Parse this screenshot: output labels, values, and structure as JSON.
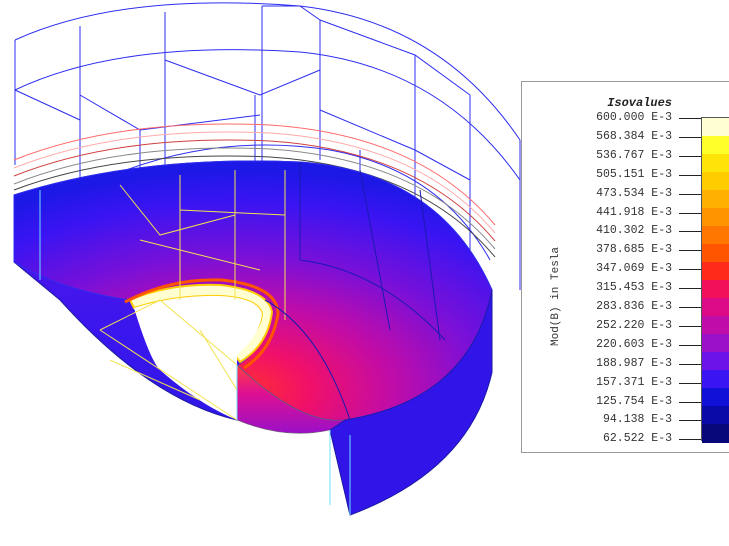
{
  "legend": {
    "title": "Isovalues",
    "quantity_label": "Mod(B) in Tesla",
    "levels": [
      {
        "label": "600.000 E-3",
        "color": "#ffffd2"
      },
      {
        "label": "568.384 E-3",
        "color": "#ffff2a"
      },
      {
        "label": "536.767 E-3",
        "color": "#ffe40a"
      },
      {
        "label": "505.151 E-3",
        "color": "#ffcc00"
      },
      {
        "label": "473.534 E-3",
        "color": "#ffb000"
      },
      {
        "label": "441.918 E-3",
        "color": "#ff9400"
      },
      {
        "label": "410.302 E-3",
        "color": "#ff7600"
      },
      {
        "label": "378.685 E-3",
        "color": "#ff5400"
      },
      {
        "label": "347.069 E-3",
        "color": "#ff2a1a"
      },
      {
        "label": "315.453 E-3",
        "color": "#f2105a"
      },
      {
        "label": "283.836 E-3",
        "color": "#dc0a86"
      },
      {
        "label": "252.220 E-3",
        "color": "#c00ca8"
      },
      {
        "label": "220.603 E-3",
        "color": "#9a10c8"
      },
      {
        "label": "188.987 E-3",
        "color": "#6a12e8"
      },
      {
        "label": "157.371 E-3",
        "color": "#3a14f2"
      },
      {
        "label": "125.754 E-3",
        "color": "#1010d8"
      },
      {
        "label": "94.138 E-3",
        "color": "#0a0aa8"
      },
      {
        "label": "62.522 E-3",
        "color": "#08087a"
      }
    ]
  },
  "scene": {
    "object": "magnetic-field-solid-model",
    "wire_color": "#2d2df0",
    "inner_mesh_color": "#f2e250"
  }
}
